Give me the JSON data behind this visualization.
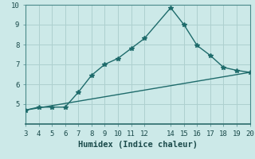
{
  "xlabel": "Humidex (Indice chaleur)",
  "background_color": "#cce9e8",
  "grid_color": "#aed0cf",
  "line_color": "#1e6b6b",
  "line1_x": [
    3,
    4,
    5,
    6,
    7,
    8,
    9,
    10,
    11,
    12,
    14,
    15,
    16,
    17,
    18,
    19,
    20
  ],
  "line1_y": [
    4.7,
    4.85,
    4.85,
    4.85,
    5.6,
    6.45,
    7.0,
    7.3,
    7.8,
    8.3,
    9.85,
    9.0,
    7.95,
    7.45,
    6.85,
    6.7,
    6.6
  ],
  "line2_x": [
    3,
    20
  ],
  "line2_y": [
    4.7,
    6.6
  ],
  "xlim": [
    3,
    20
  ],
  "ylim": [
    4,
    10
  ],
  "xticks": [
    3,
    4,
    5,
    6,
    7,
    8,
    9,
    10,
    11,
    12,
    14,
    15,
    16,
    17,
    18,
    19,
    20
  ],
  "yticks": [
    5,
    6,
    7,
    8,
    9,
    10
  ],
  "marker": "*",
  "marker_size": 4,
  "line_width": 1.0,
  "tick_fontsize": 6.5,
  "xlabel_fontsize": 7.5
}
